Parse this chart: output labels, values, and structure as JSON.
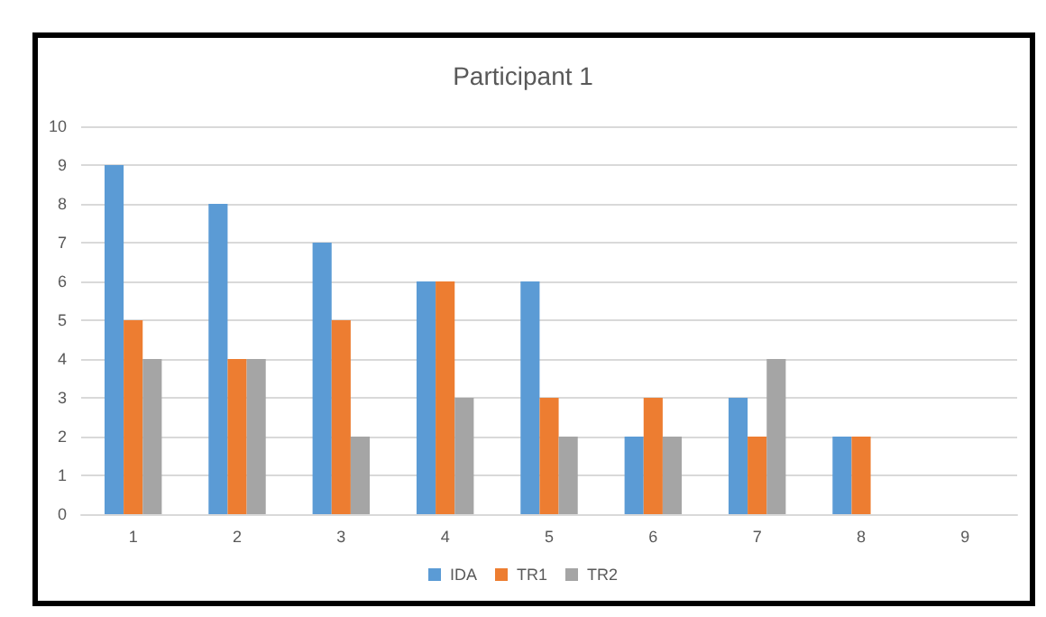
{
  "chart_data": {
    "type": "bar",
    "title": "Participant 1",
    "categories": [
      "1",
      "2",
      "3",
      "4",
      "5",
      "6",
      "7",
      "8",
      "9"
    ],
    "series": [
      {
        "name": "IDA",
        "color": "#5b9bd5",
        "values": [
          9,
          8,
          7,
          6,
          6,
          2,
          3,
          2,
          null
        ]
      },
      {
        "name": "TR1",
        "color": "#ed7d31",
        "values": [
          5,
          4,
          5,
          6,
          3,
          3,
          2,
          2,
          null
        ]
      },
      {
        "name": "TR2",
        "color": "#a5a5a5",
        "values": [
          4,
          4,
          2,
          3,
          2,
          2,
          4,
          null,
          null
        ]
      }
    ],
    "ylim": [
      0,
      10
    ],
    "yticks": [
      0,
      1,
      2,
      3,
      4,
      5,
      6,
      7,
      8,
      9,
      10
    ],
    "grid": "y",
    "legend": "bottom"
  }
}
